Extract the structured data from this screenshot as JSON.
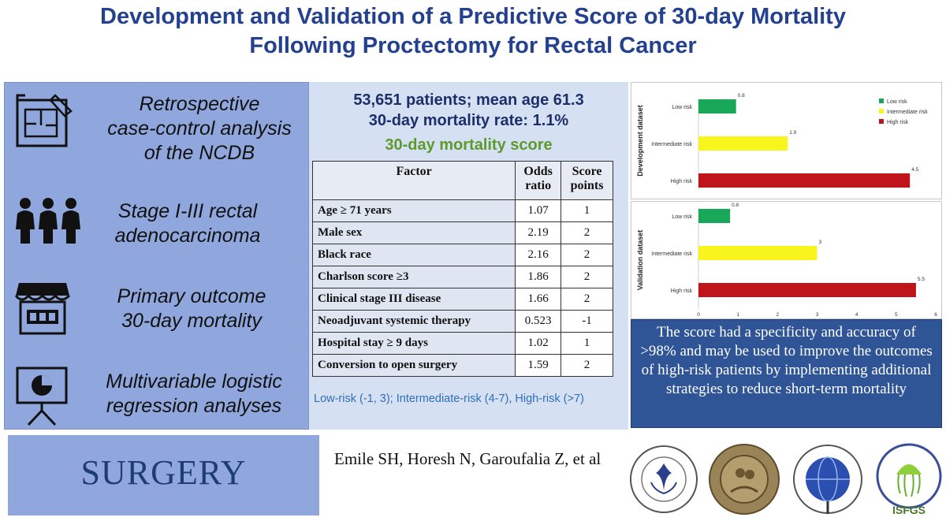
{
  "title": {
    "line1": "Development and Validation of a Predictive Score of 30-day Mortality",
    "line2": "Following  Proctectomy for Rectal Cancer"
  },
  "left_panel": {
    "items": [
      {
        "icon": "blueprint-icon",
        "lines": [
          "Retrospective",
          "case-control analysis",
          "of the NCDB"
        ]
      },
      {
        "icon": "people-icon",
        "lines": [
          "Stage I-III rectal",
          "adenocarcinoma"
        ]
      },
      {
        "icon": "store-icon",
        "lines": [
          "Primary outcome",
          "30-day mortality"
        ]
      },
      {
        "icon": "presentation-chart-icon",
        "lines": [
          "Multivariable logistic",
          "regression analyses"
        ]
      }
    ]
  },
  "center": {
    "stats_line1": "53,651 patients; mean age 61.3",
    "stats_line2": "30-day mortality rate: 1.1%",
    "score_title": "30-day mortality score",
    "table_headers": [
      "Factor",
      "Odds ratio",
      "Score points"
    ],
    "table_rows": [
      {
        "factor": "Age ≥ 71 years",
        "odds_ratio": "1.07",
        "points": "1"
      },
      {
        "factor": "Male sex",
        "odds_ratio": "2.19",
        "points": "2"
      },
      {
        "factor": "Black race",
        "odds_ratio": "2.16",
        "points": "2"
      },
      {
        "factor": "Charlson score ≥3",
        "odds_ratio": "1.86",
        "points": "2"
      },
      {
        "factor": "Clinical stage III disease",
        "odds_ratio": "1.66",
        "points": "2"
      },
      {
        "factor": "Neoadjuvant systemic therapy",
        "odds_ratio": "0.523",
        "points": "-1"
      },
      {
        "factor": "Hospital stay ≥ 9 days",
        "odds_ratio": "1.02",
        "points": "1"
      },
      {
        "factor": "Conversion to open surgery",
        "odds_ratio": "1.59",
        "points": "2"
      }
    ],
    "risk_note": "Low-risk (-1, 3); Intermediate-risk (4-7), High-risk (>7)"
  },
  "colors": {
    "title": "#24418f",
    "panel_blue": "#8fa7dd",
    "center_bg": "#d6e0f3",
    "score_green": "#5d9a2c",
    "conclusion_bg": "#2f5597"
  },
  "chart_data": [
    {
      "type": "bar",
      "orientation": "horizontal",
      "ylabel": "Development dataset",
      "categories": [
        "Low risk",
        "Intermediate risk",
        "High risk"
      ],
      "values": [
        0.8,
        1.9,
        4.5
      ],
      "data_labels": [
        "0.8",
        "1.9",
        "4.5"
      ],
      "colors": [
        "#19a75a",
        "#f7f51b",
        "#c0141c"
      ],
      "legend": [
        "Low risk",
        "Intermediate risk",
        "High risk"
      ],
      "legend_position": "right",
      "xlim": [
        0,
        5
      ]
    },
    {
      "type": "bar",
      "orientation": "horizontal",
      "ylabel": "Validation dataset",
      "categories": [
        "Low risk",
        "Intermediate risk",
        "High risk"
      ],
      "values": [
        0.8,
        3,
        5.5
      ],
      "data_labels": [
        "0.8",
        "3",
        "5.5"
      ],
      "colors": [
        "#19a75a",
        "#f7f51b",
        "#c0141c"
      ],
      "x_ticks": [
        "0",
        "1",
        "2",
        "3",
        "4",
        "5",
        "6"
      ],
      "xlim": [
        0,
        6
      ]
    }
  ],
  "conclusion": "The score had a specificity and accuracy of >98% and may be used to improve the outcomes of high-risk patients by implementing additional strategies to reduce short-term mortality",
  "journal": "SURGERY",
  "authors": "Emile SH, Horesh N, Garoufalia Z, et al",
  "logos": [
    {
      "icon": "society-university-surgeons-seal-icon"
    },
    {
      "icon": "central-surgical-association-seal-icon"
    },
    {
      "icon": "aaes-globe-seal-icon"
    },
    {
      "icon": "isfgs-jellyfish-logo-icon",
      "text": "ISFGS"
    }
  ]
}
